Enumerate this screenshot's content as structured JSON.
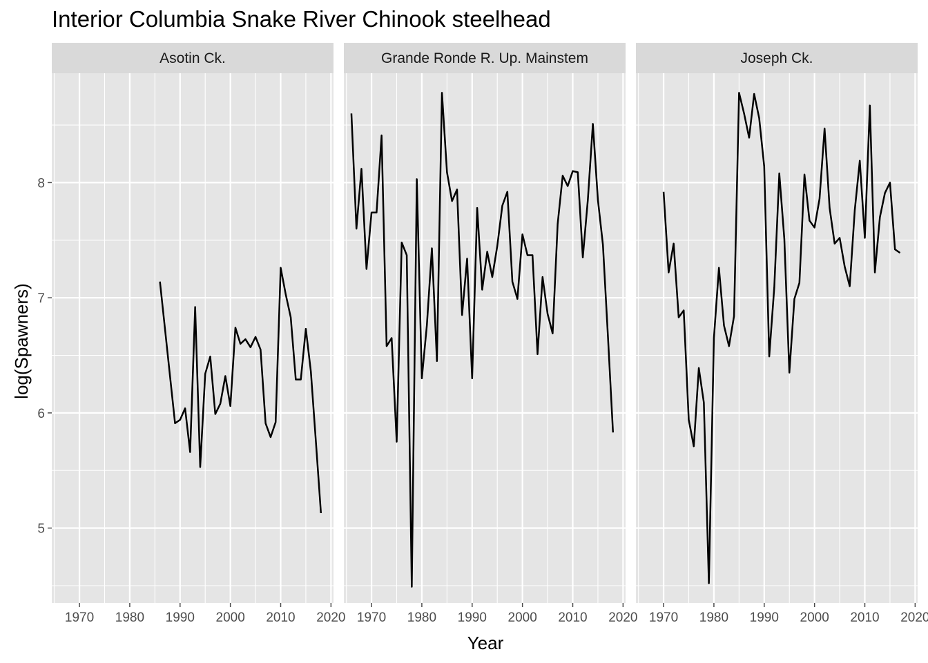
{
  "chart_data": {
    "type": "line",
    "title": "Interior Columbia Snake River Chinook steelhead",
    "xlabel": "Year",
    "ylabel": "log(Spawners)",
    "xlim": [
      1964.5,
      2020.5
    ],
    "ylim": [
      4.35,
      8.95
    ],
    "x_ticks": [
      1970,
      1980,
      1990,
      2000,
      2010,
      2020
    ],
    "y_ticks": [
      5,
      6,
      7,
      8
    ],
    "grid": true,
    "legend": "none",
    "colors": {
      "panel_bg": "#e5e5e5",
      "strip_bg": "#d9d9d9",
      "grid": "#ffffff",
      "line": "#000000",
      "tick": "#4d4d4d"
    },
    "panels": [
      {
        "name": "Asotin Ck.",
        "x": [
          1986,
          1987,
          1988,
          1989,
          1990,
          1991,
          1992,
          1993,
          1994,
          1995,
          1996,
          1997,
          1998,
          1999,
          2000,
          2001,
          2002,
          2003,
          2004,
          2005,
          2006,
          2007,
          2008,
          2009,
          2010,
          2011,
          2012,
          2013,
          2014,
          2015,
          2016,
          2017,
          2018
        ],
        "y": [
          7.14,
          6.73,
          6.32,
          5.91,
          5.94,
          6.04,
          5.66,
          6.92,
          5.53,
          6.34,
          6.49,
          5.99,
          6.08,
          6.32,
          6.06,
          6.74,
          6.6,
          6.64,
          6.57,
          6.66,
          6.55,
          5.91,
          5.79,
          5.92,
          7.26,
          7.03,
          6.83,
          6.29,
          6.29,
          6.73,
          6.36,
          5.75,
          5.13
        ]
      },
      {
        "name": "Grande Ronde R. Up. Mainstem",
        "x": [
          1966,
          1967,
          1968,
          1969,
          1970,
          1971,
          1972,
          1973,
          1974,
          1975,
          1976,
          1977,
          1978,
          1979,
          1980,
          1981,
          1982,
          1983,
          1984,
          1985,
          1986,
          1987,
          1988,
          1989,
          1990,
          1991,
          1992,
          1993,
          1994,
          1995,
          1996,
          1997,
          1998,
          1999,
          2000,
          2001,
          2002,
          2003,
          2004,
          2005,
          2006,
          2007,
          2008,
          2009,
          2010,
          2011,
          2012,
          2013,
          2014,
          2015,
          2016,
          2017,
          2018
        ],
        "y": [
          8.6,
          7.6,
          8.12,
          7.25,
          7.74,
          7.74,
          8.41,
          6.58,
          6.65,
          5.75,
          7.48,
          7.37,
          4.49,
          8.03,
          6.3,
          6.76,
          7.43,
          6.45,
          8.78,
          8.09,
          7.84,
          7.94,
          6.85,
          7.34,
          6.3,
          7.78,
          7.07,
          7.4,
          7.18,
          7.45,
          7.8,
          7.92,
          7.14,
          6.99,
          7.55,
          7.37,
          7.37,
          6.51,
          7.18,
          6.86,
          6.69,
          7.64,
          8.06,
          7.97,
          8.1,
          8.09,
          7.35,
          7.85,
          8.51,
          7.85,
          7.46,
          6.66,
          5.83
        ]
      },
      {
        "name": "Joseph Ck.",
        "x": [
          1970,
          1971,
          1972,
          1973,
          1974,
          1975,
          1976,
          1977,
          1978,
          1979,
          1980,
          1981,
          1982,
          1983,
          1984,
          1985,
          1986,
          1987,
          1988,
          1989,
          1990,
          1991,
          1992,
          1993,
          1994,
          1995,
          1996,
          1997,
          1998,
          1999,
          2000,
          2001,
          2002,
          2003,
          2004,
          2005,
          2006,
          2007,
          2008,
          2009,
          2010,
          2011,
          2012,
          2013,
          2014,
          2015,
          2016,
          2017
        ],
        "y": [
          7.92,
          7.22,
          7.47,
          6.83,
          6.89,
          5.94,
          5.71,
          6.39,
          6.09,
          4.52,
          6.65,
          7.26,
          6.76,
          6.58,
          6.84,
          8.78,
          8.6,
          8.39,
          8.77,
          8.56,
          8.14,
          6.49,
          7.09,
          8.08,
          7.51,
          6.35,
          6.99,
          7.13,
          8.07,
          7.67,
          7.61,
          7.86,
          8.47,
          7.78,
          7.47,
          7.52,
          7.27,
          7.1,
          7.76,
          8.19,
          7.52,
          8.67,
          7.22,
          7.7,
          7.91,
          8.0,
          7.42,
          7.39
        ]
      }
    ]
  }
}
